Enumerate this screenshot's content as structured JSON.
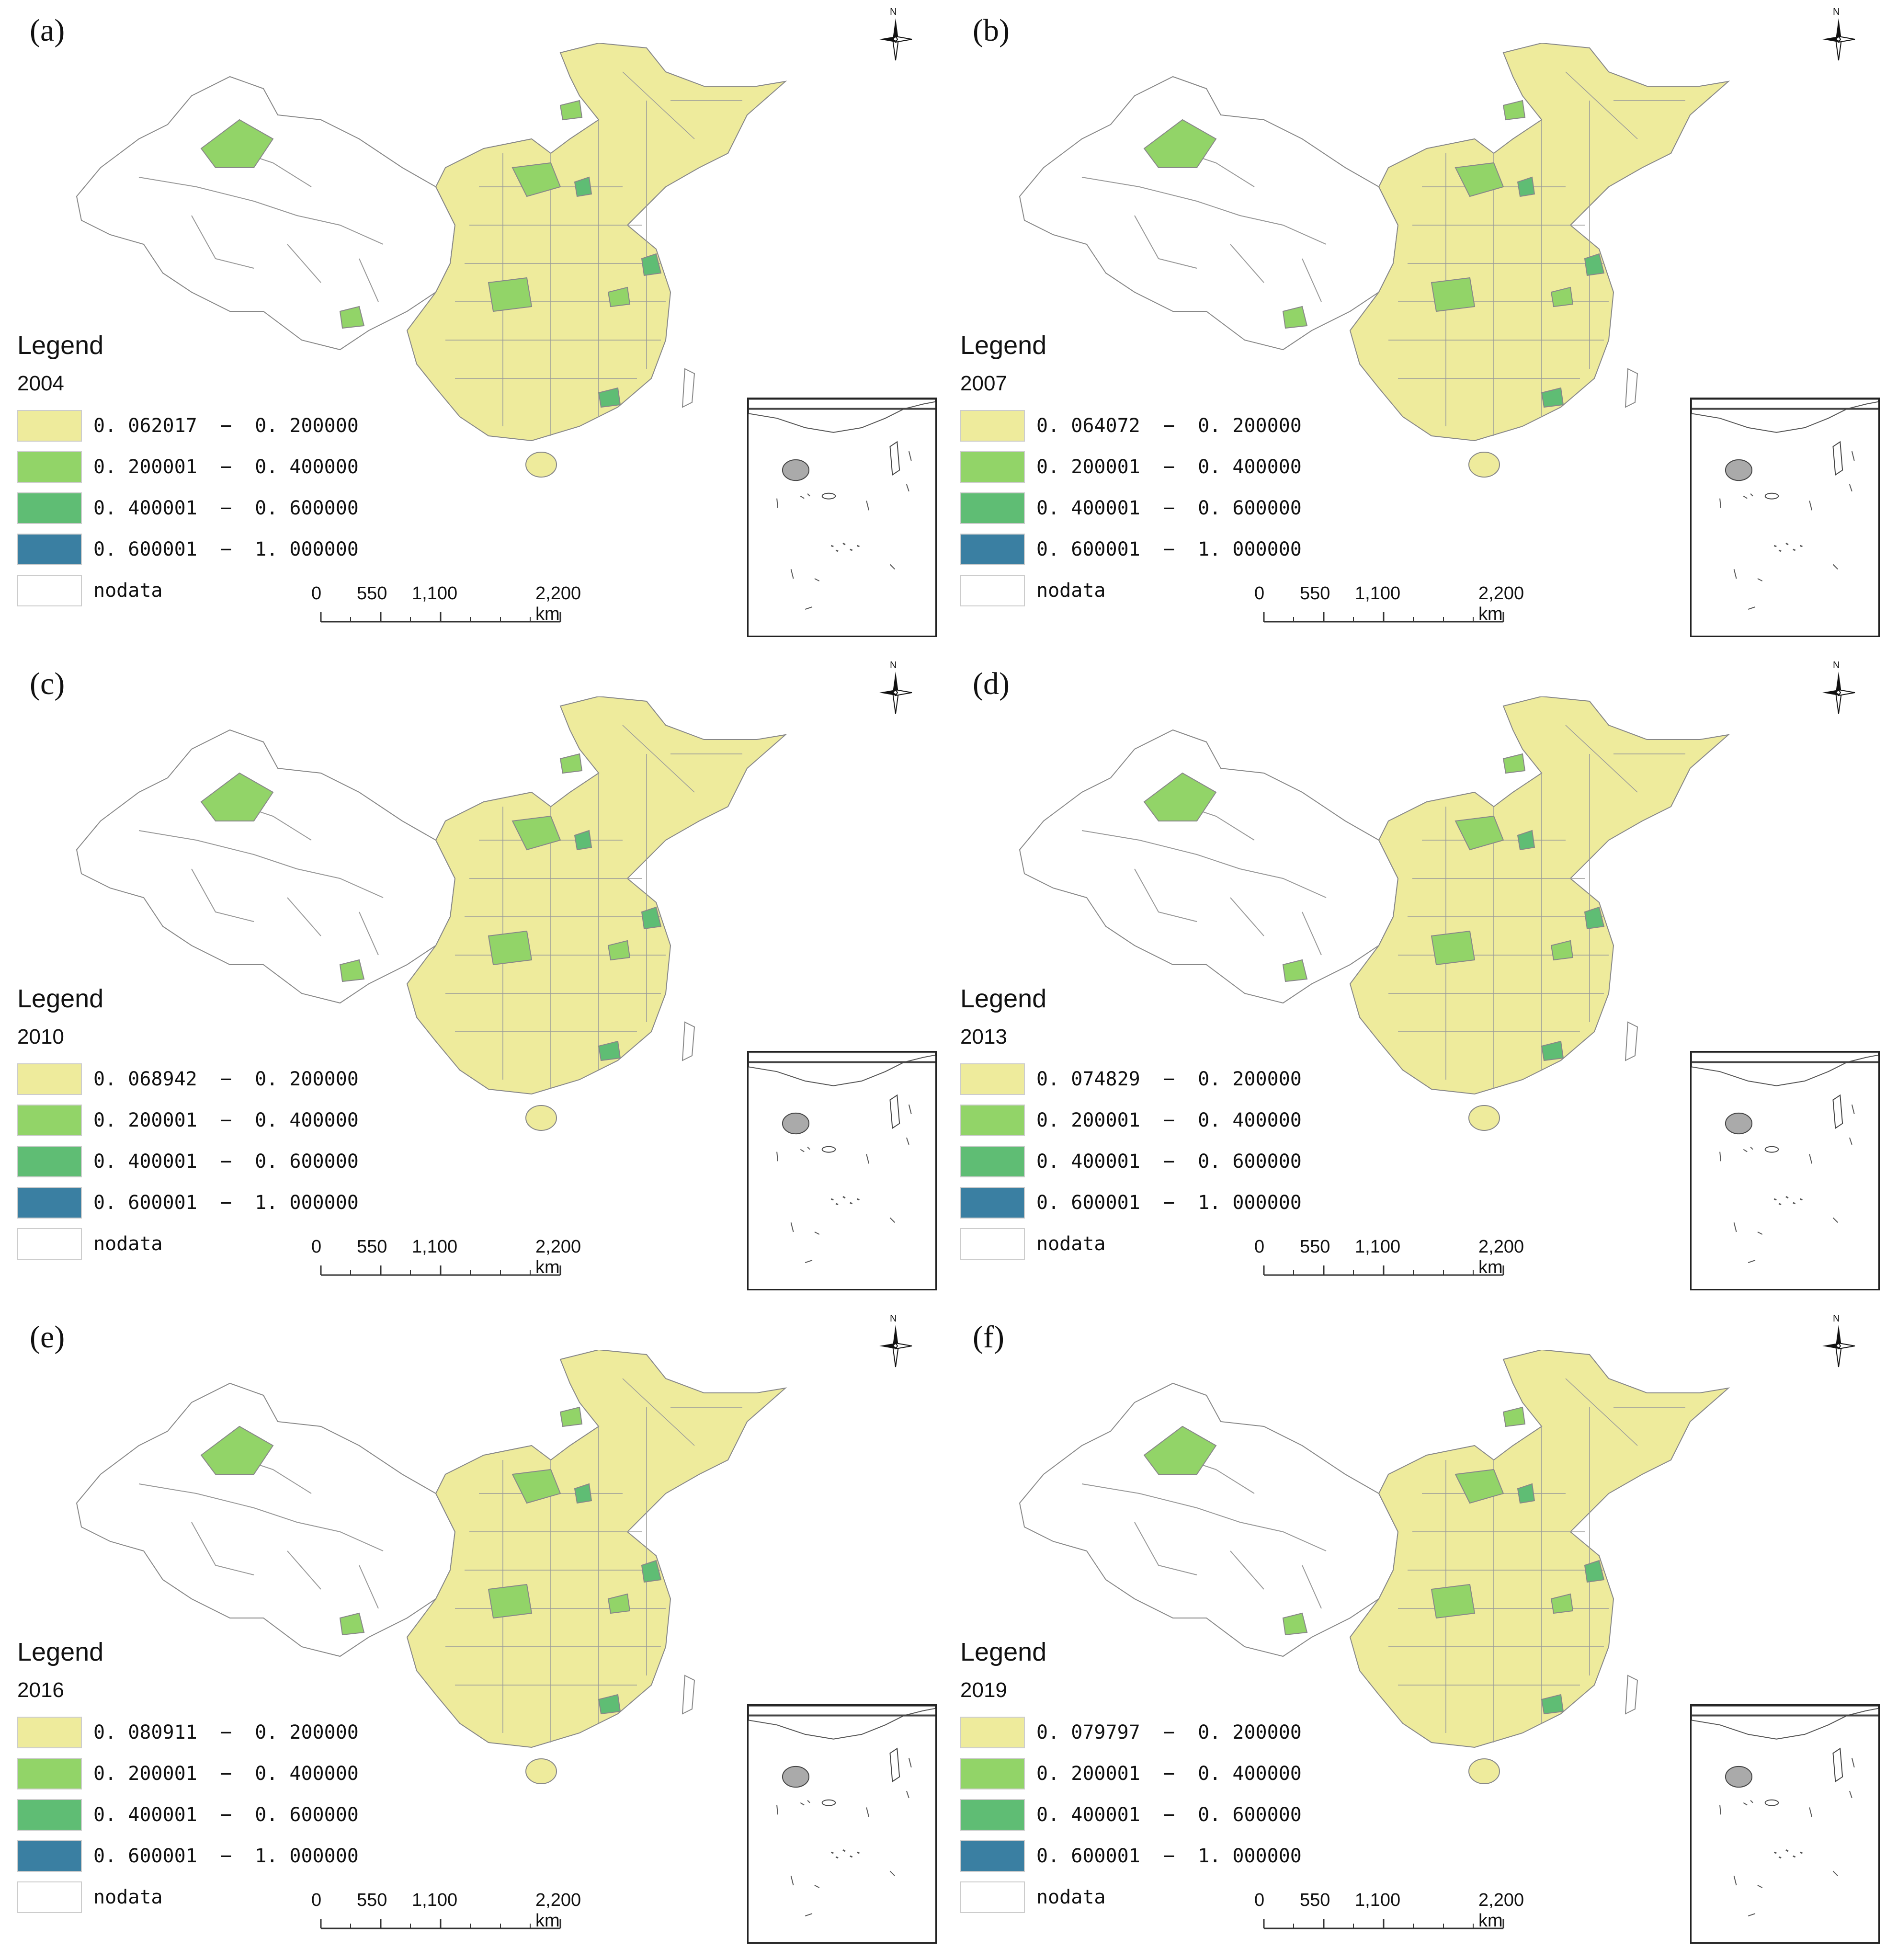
{
  "colors": {
    "class1": "#eeeb9c",
    "class2": "#92d468",
    "class3": "#5fbd74",
    "class4": "#3a7fa2",
    "nodata": "#ffffff",
    "border": "#888888"
  },
  "legend_title": "Legend",
  "north_label": "N",
  "scale": {
    "labels": [
      "0",
      "550",
      "1,100",
      "2,200 km"
    ]
  },
  "panels": [
    {
      "letter": "(a)",
      "year": "2004",
      "classes": [
        "0. 062017  −  0. 200000",
        "0. 200001  −  0. 400000",
        "0. 400001  −  0. 600000",
        "0. 600001  −  1. 000000",
        "nodata"
      ]
    },
    {
      "letter": "(b)",
      "year": "2007",
      "classes": [
        "0. 064072  −  0. 200000",
        "0. 200001  −  0. 400000",
        "0. 400001  −  0. 600000",
        "0. 600001  −  1. 000000",
        "nodata"
      ]
    },
    {
      "letter": "(c)",
      "year": "2010",
      "classes": [
        "0. 068942  −  0. 200000",
        "0. 200001  −  0. 400000",
        "0. 400001  −  0. 600000",
        "0. 600001  −  1. 000000",
        "nodata"
      ]
    },
    {
      "letter": "(d)",
      "year": "2013",
      "classes": [
        "0. 074829  −  0. 200000",
        "0. 200001  −  0. 400000",
        "0. 400001  −  0. 600000",
        "0. 600001  −  1. 000000",
        "nodata"
      ]
    },
    {
      "letter": "(e)",
      "year": "2016",
      "classes": [
        "0. 080911  −  0. 200000",
        "0. 200001  −  0. 400000",
        "0. 400001  −  0. 600000",
        "0. 600001  −  1. 000000",
        "nodata"
      ]
    },
    {
      "letter": "(f)",
      "year": "2019",
      "classes": [
        "0. 079797  −  0. 200000",
        "0. 200001  −  0. 400000",
        "0. 400001  −  0. 600000",
        "0. 600001  −  1. 000000",
        "nodata"
      ]
    }
  ]
}
